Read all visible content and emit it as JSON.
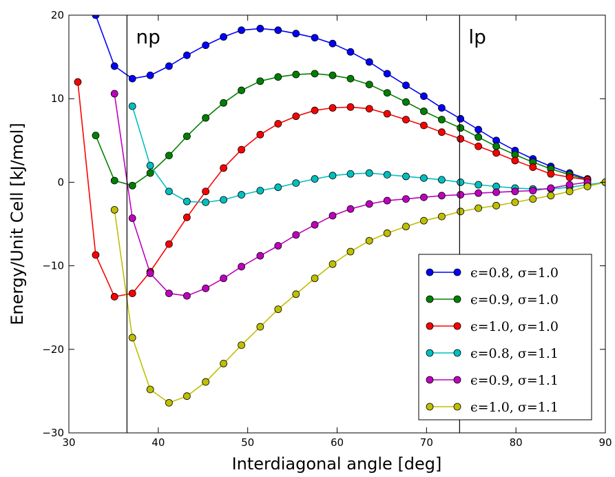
{
  "chart_data": {
    "type": "line",
    "title": "",
    "xlabel": "Interdiagonal angle [deg]",
    "ylabel": "Energy/Unit Cell [kJ/mol]",
    "xlim": [
      30,
      90
    ],
    "ylim": [
      -30,
      20
    ],
    "xticks": [
      30,
      40,
      50,
      60,
      70,
      80,
      90
    ],
    "yticks": [
      -30,
      -20,
      -10,
      0,
      10,
      20
    ],
    "xtick_labels": [
      "30",
      "40",
      "50",
      "60",
      "70",
      "80",
      "90"
    ],
    "ytick_labels": [
      "−30",
      "−20",
      "−10",
      "0",
      "10",
      "20"
    ],
    "grid": false,
    "legend_position": "bottom-right",
    "annotations": [
      {
        "text": "np",
        "x": 36.5
      },
      {
        "text": "lp",
        "x": 73.7
      }
    ],
    "series": [
      {
        "name": "ϵ=0.8, σ=1.0",
        "color": "#0000ff",
        "x": [
          33.0,
          35.1,
          37.1,
          39.1,
          41.2,
          43.2,
          45.3,
          47.3,
          49.3,
          51.4,
          53.4,
          55.4,
          57.5,
          59.5,
          61.5,
          63.6,
          65.6,
          67.7,
          69.7,
          71.7,
          73.8,
          75.8,
          77.8,
          79.9,
          81.9,
          83.9,
          86.0,
          88.0
        ],
        "y": [
          20.0,
          13.9,
          12.4,
          12.8,
          13.9,
          15.2,
          16.4,
          17.4,
          18.2,
          18.4,
          18.2,
          17.8,
          17.3,
          16.6,
          15.6,
          14.4,
          13.0,
          11.6,
          10.3,
          8.9,
          7.6,
          6.3,
          5.0,
          3.8,
          2.8,
          1.9,
          1.1,
          0.4
        ]
      },
      {
        "name": "ϵ=0.9, σ=1.0",
        "color": "#008000",
        "x": [
          33.0,
          35.1,
          37.1,
          39.1,
          41.2,
          43.2,
          45.3,
          47.3,
          49.3,
          51.4,
          53.4,
          55.4,
          57.5,
          59.5,
          61.5,
          63.6,
          65.6,
          67.7,
          69.7,
          71.7,
          73.8,
          75.8,
          77.8,
          79.9,
          81.9,
          83.9,
          86.0,
          88.0
        ],
        "y": [
          5.6,
          0.2,
          -0.4,
          1.1,
          3.2,
          5.5,
          7.7,
          9.5,
          11.0,
          12.1,
          12.6,
          12.9,
          13.0,
          12.8,
          12.4,
          11.7,
          10.7,
          9.6,
          8.5,
          7.5,
          6.5,
          5.4,
          4.3,
          3.3,
          2.4,
          1.6,
          0.9,
          0.3
        ]
      },
      {
        "name": "ϵ=1.0, σ=1.0",
        "color": "#ff0000",
        "x": [
          31.0,
          33.0,
          35.1,
          37.1,
          39.1,
          41.2,
          43.2,
          45.3,
          47.3,
          49.3,
          51.4,
          53.4,
          55.4,
          57.5,
          59.5,
          61.5,
          63.6,
          65.6,
          67.7,
          69.7,
          71.7,
          73.8,
          75.8,
          77.8,
          79.9,
          81.9,
          83.9,
          86.0,
          88.0
        ],
        "y": [
          12.0,
          -8.7,
          -13.7,
          -13.3,
          -10.7,
          -7.4,
          -4.2,
          -1.1,
          1.7,
          3.9,
          5.7,
          7.0,
          7.9,
          8.6,
          8.9,
          9.0,
          8.8,
          8.2,
          7.5,
          6.8,
          6.0,
          5.2,
          4.3,
          3.5,
          2.6,
          1.8,
          1.0,
          0.6,
          0.3
        ]
      },
      {
        "name": "ϵ=0.8, σ=1.1",
        "color": "#00bfbf",
        "x": [
          37.1,
          39.1,
          41.2,
          43.2,
          45.3,
          47.3,
          49.3,
          51.4,
          53.4,
          55.4,
          57.5,
          59.5,
          61.5,
          63.6,
          65.6,
          67.7,
          69.7,
          71.7,
          73.8,
          75.8,
          77.8,
          79.9,
          81.9,
          83.9,
          86.0,
          88.0,
          90.0
        ],
        "y": [
          9.1,
          2.0,
          -1.1,
          -2.3,
          -2.4,
          -2.1,
          -1.5,
          -1.0,
          -0.6,
          -0.1,
          0.4,
          0.8,
          1.0,
          1.1,
          0.9,
          0.7,
          0.5,
          0.3,
          0.0,
          -0.3,
          -0.5,
          -0.7,
          -0.8,
          -0.8,
          -0.6,
          -0.3,
          0.0
        ]
      },
      {
        "name": "ϵ=0.9, σ=1.1",
        "color": "#bf00bf",
        "x": [
          35.1,
          37.1,
          39.1,
          41.2,
          43.2,
          45.3,
          47.3,
          49.3,
          51.4,
          53.4,
          55.4,
          57.5,
          59.5,
          61.5,
          63.6,
          65.6,
          67.7,
          69.7,
          71.7,
          73.8,
          75.8,
          77.8,
          79.9,
          81.9,
          83.9,
          86.0,
          88.0
        ],
        "y": [
          10.6,
          -4.3,
          -10.9,
          -13.3,
          -13.6,
          -12.7,
          -11.5,
          -10.1,
          -8.8,
          -7.6,
          -6.3,
          -5.1,
          -4.0,
          -3.2,
          -2.6,
          -2.2,
          -2.0,
          -1.8,
          -1.6,
          -1.5,
          -1.3,
          -1.2,
          -1.1,
          -1.0,
          -0.7,
          -0.3,
          0.0
        ]
      },
      {
        "name": "ϵ=1.0, σ=1.1",
        "color": "#bfbf00",
        "x": [
          35.1,
          37.1,
          39.1,
          41.2,
          43.2,
          45.3,
          47.3,
          49.3,
          51.4,
          53.4,
          55.4,
          57.5,
          59.5,
          61.5,
          63.6,
          65.6,
          67.7,
          69.7,
          71.7,
          73.8,
          75.8,
          77.8,
          79.9,
          81.9,
          83.9,
          86.0,
          88.0,
          90.0
        ],
        "y": [
          -3.3,
          -18.6,
          -24.8,
          -26.4,
          -25.6,
          -23.9,
          -21.7,
          -19.5,
          -17.3,
          -15.2,
          -13.4,
          -11.5,
          -9.8,
          -8.3,
          -7.0,
          -6.1,
          -5.3,
          -4.6,
          -4.1,
          -3.5,
          -3.1,
          -2.8,
          -2.4,
          -2.0,
          -1.6,
          -1.1,
          -0.5,
          0.0
        ]
      }
    ]
  }
}
